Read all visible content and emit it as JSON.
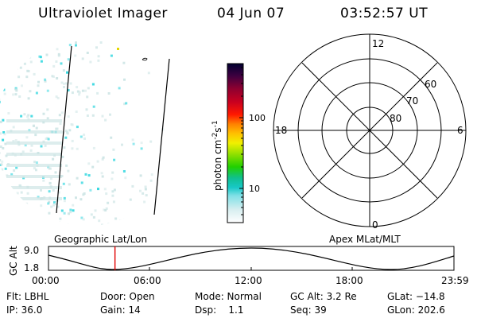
{
  "header": {
    "title": "Ultraviolet Imager",
    "date": "04 Jun 07",
    "time": "03:52:57 UT"
  },
  "colorbar": {
    "unit_label": "photon cm",
    "unit_exp1": "-2",
    "unit_mid": "s",
    "unit_exp2": "-1",
    "ticks": [
      "100",
      "10"
    ]
  },
  "polar_plot": {
    "mlt_labels": {
      "top": "12",
      "left": "18",
      "right": "6",
      "bottom": "0"
    },
    "lat_labels": [
      "60",
      "70",
      "80"
    ]
  },
  "timeline": {
    "left_caption": "Geographic Lat/Lon",
    "right_caption": "Apex MLat/MLT",
    "axis_title": "GC Alt",
    "y_ticks": [
      "9.0",
      "1.8"
    ],
    "x_ticks": [
      "00:00",
      "06:00",
      "12:00",
      "18:00",
      "23:59"
    ],
    "current_time_fraction": 0.164
  },
  "info": {
    "row1": [
      {
        "key": "filter",
        "text": "Flt: LBHL"
      },
      {
        "key": "door",
        "text": "Door: Open"
      },
      {
        "key": "mode",
        "text": "Mode: Normal"
      },
      {
        "key": "gcalt",
        "text": "GC Alt: 3.2 Re"
      },
      {
        "key": "glat",
        "text": "GLat: −14.8"
      }
    ],
    "row2": [
      {
        "key": "ip",
        "text": "IP: 36.0"
      },
      {
        "key": "gain",
        "text": "Gain: 14"
      },
      {
        "key": "dsp",
        "text": "Dsp:    1.1"
      },
      {
        "key": "seq",
        "text": "Seq: 39"
      },
      {
        "key": "glon",
        "text": "GLon: 202.6"
      }
    ]
  },
  "colors": {
    "background": "#ffffff",
    "foreground": "#000000",
    "marker": "#e00000",
    "emission_cyan": "#39d8e0",
    "emission_pale": "#cfe6e6"
  }
}
